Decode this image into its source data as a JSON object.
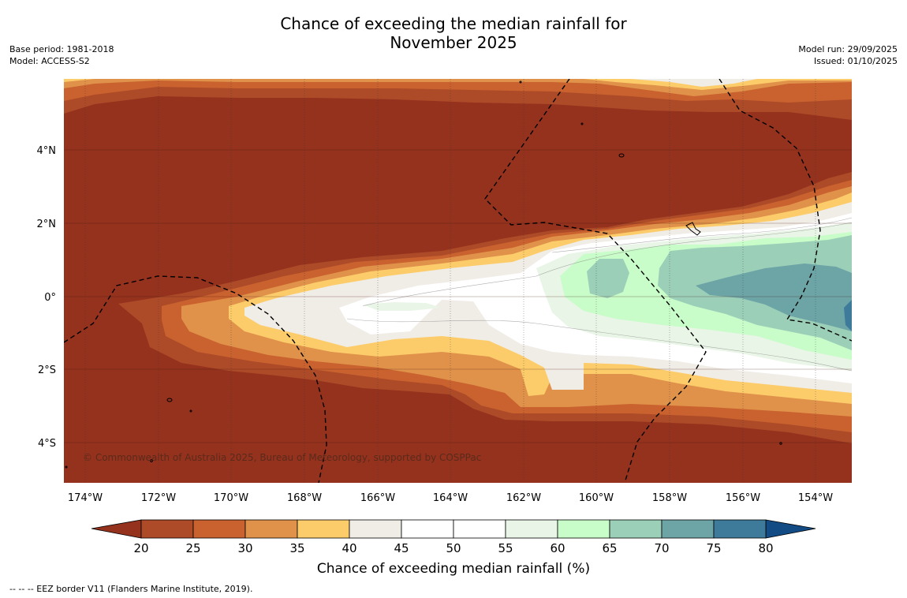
{
  "title": {
    "line1": "Chance of exceeding the median rainfall for",
    "line2": "November 2025"
  },
  "meta_left": {
    "base_period": "Base period: 1981-2018",
    "model": "Model: ACCESS-S2"
  },
  "meta_right": {
    "model_run": "Model run: 29/09/2025",
    "issued": "Issued: 01/10/2025"
  },
  "map": {
    "copyright": "© Commonwealth of Australia 2025, Bureau of Meteorology, supported by COSPPac",
    "lon_ticks": [
      "174°W",
      "172°W",
      "170°W",
      "168°W",
      "166°W",
      "164°W",
      "162°W",
      "160°W",
      "158°W",
      "156°W",
      "154°W"
    ],
    "lat_ticks": [
      "4°N",
      "2°N",
      "0°",
      "2°S",
      "4°S"
    ],
    "lat_values": [
      4,
      2,
      0,
      -2,
      -4
    ],
    "lon_values": [
      -174,
      -172,
      -170,
      -168,
      -166,
      -164,
      -162,
      -160,
      -158,
      -156,
      -154
    ]
  },
  "colorbar": {
    "title": "Chance of exceeding median rainfall (%)",
    "levels": [
      20,
      25,
      30,
      35,
      40,
      45,
      50,
      55,
      60,
      65,
      70,
      75,
      80
    ],
    "colors": [
      "#ad4a28",
      "#c9622f",
      "#e0924a",
      "#fdcc6a",
      "#f0ece6",
      "#ffffff",
      "#ffffff",
      "#e9f5e6",
      "#c8fcc8",
      "#9ccfb8",
      "#6da4a6",
      "#3e7a9a"
    ],
    "under_color": "#95321e",
    "over_color": "#134b84"
  },
  "legend_note": "--  --  -- EEZ border V11 (Flanders Marine Institute, 2019)."
}
